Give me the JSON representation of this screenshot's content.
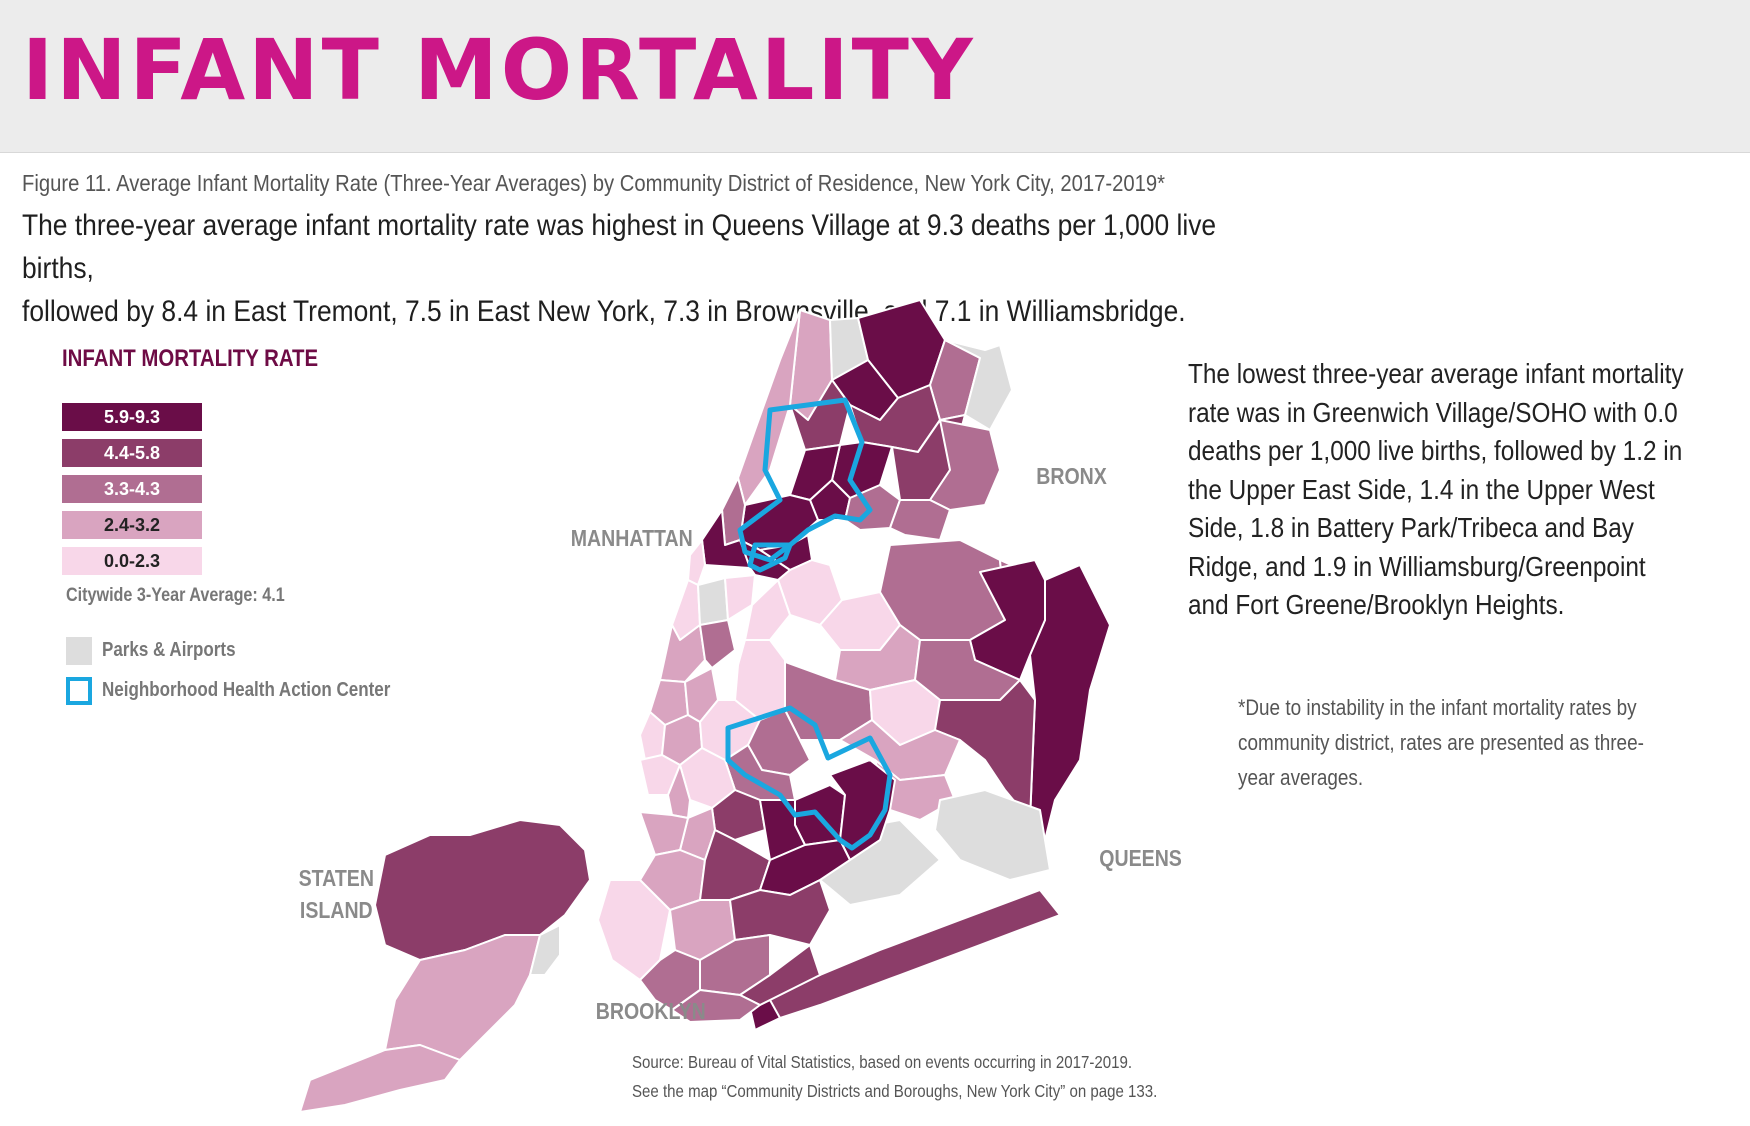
{
  "header": {
    "title": "INFANT MORTALITY",
    "title_color": "#cc1787"
  },
  "figure": {
    "caption": "Figure 11. Average Infant Mortality Rate (Three-Year Averages) by Community District of Residence, New York City, 2017-2019*",
    "headline_line1": "The three-year average infant mortality rate was highest in Queens Village at 9.3 deaths per 1,000 live births,",
    "headline_line2": "followed by 8.4 in East Tremont, 7.5 in East New York, 7.3 in Brownsville, and 7.1 in Williamsbridge."
  },
  "legend": {
    "title": "INFANT MORTALITY RATE",
    "items": [
      {
        "label": "5.9-9.3",
        "color": "#6a0d48",
        "text_color": "#ffffff"
      },
      {
        "label": "4.4-5.8",
        "color": "#8c3d69",
        "text_color": "#ffffff"
      },
      {
        "label": "3.3-4.3",
        "color": "#b06e92",
        "text_color": "#ffffff"
      },
      {
        "label": "2.4-3.2",
        "color": "#d9a4c0",
        "text_color": "#222222"
      },
      {
        "label": "0.0-2.3",
        "color": "#f8d7e9",
        "text_color": "#222222"
      }
    ],
    "citywide_average": "Citywide 3-Year Average: 4.1",
    "parks_label": "Parks & Airports",
    "parks_color": "#dddddd",
    "center_label": "Neighborhood Health Action Center",
    "center_color": "#1aa7e0"
  },
  "map": {
    "borough_labels": {
      "bronx": "BRONX",
      "manhattan": "MANHATTAN",
      "queens": "QUEENS",
      "brooklyn": "BROOKLYN",
      "staten_island_line1": "STATEN",
      "staten_island_line2": "ISLAND"
    }
  },
  "side_text": "The lowest three-year average infant mortality rate was in Greenwich Village/SOHO with 0.0 deaths per 1,000 live births, followed by 1.2 in the Upper East Side, 1.4 in the Upper West Side, 1.8 in Battery Park/Tribeca and Bay Ridge, and 1.9 in Williamsburg/Greenpoint and Fort Greene/Brooklyn Heights.",
  "footnote": "*Due to instability in the infant mortality rates by community district, rates are presented as three-year averages.",
  "source": {
    "line1": "Source: Bureau of Vital Statistics, based on events occurring in 2017-2019.",
    "line2": "See the map “Community Districts and Boroughs, New York City” on page 133."
  }
}
